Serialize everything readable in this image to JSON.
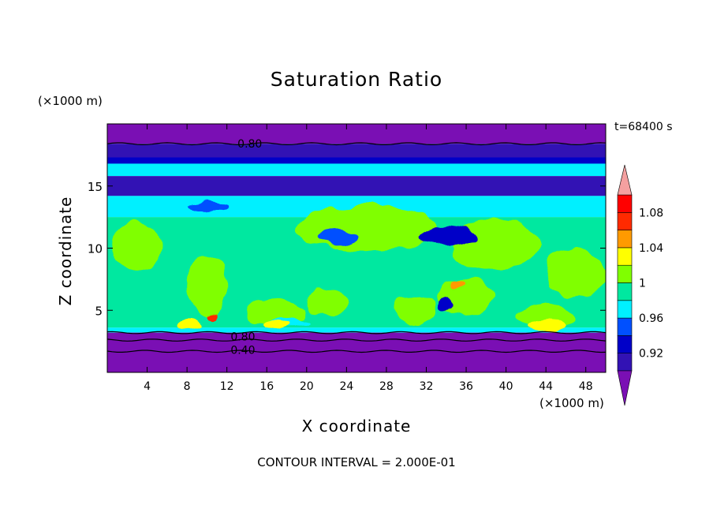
{
  "chart_data": {
    "type": "heatmap",
    "title": "Saturation Ratio",
    "xlabel": "X coordinate",
    "ylabel": "Z coordinate",
    "x_unit": "(×1000 m)",
    "y_unit": "(×1000 m)",
    "time_label": "t=68400 s",
    "footer": "CONTOUR INTERVAL = 2.000E-01",
    "xlim": [
      0,
      50
    ],
    "ylim": [
      0,
      20
    ],
    "x_ticks": [
      4,
      8,
      12,
      16,
      20,
      24,
      28,
      32,
      36,
      40,
      44,
      48
    ],
    "y_ticks": [
      5,
      10,
      15
    ],
    "colorbar": {
      "levels": [
        0.9,
        0.92,
        0.94,
        0.96,
        0.98,
        1.0,
        1.02,
        1.04,
        1.06,
        1.08,
        1.1
      ],
      "tick_labels": [
        {
          "value": 0.92,
          "label": "0.92"
        },
        {
          "value": 0.96,
          "label": "0.96"
        },
        {
          "value": 1.0,
          "label": "1"
        },
        {
          "value": 1.04,
          "label": "1.04"
        },
        {
          "value": 1.08,
          "label": "1.08"
        }
      ],
      "colors": [
        "#7a0fb4",
        "#3212b4",
        "#0000c8",
        "#0050ff",
        "#00f0ff",
        "#00e8a0",
        "#80ff00",
        "#ffff00",
        "#ff9a00",
        "#ff2a00",
        "#ff0000",
        "#f4a0a0"
      ]
    },
    "contour_labels": [
      {
        "text": "0.80",
        "x": 14.3,
        "y": 18.4
      },
      {
        "text": "0.80",
        "x": 13.6,
        "y": 2.9
      },
      {
        "text": "0.40",
        "x": 13.6,
        "y": 1.8
      }
    ],
    "layers": [
      {
        "z": [
          18.4,
          20.0
        ],
        "value": 0.85
      },
      {
        "z": [
          17.2,
          18.4
        ],
        "value": 0.9
      },
      {
        "z": [
          16.6,
          17.3
        ],
        "value": 0.93
      },
      {
        "z": [
          15.8,
          16.8
        ],
        "value": 0.96
      },
      {
        "z": [
          14.2,
          15.8
        ],
        "value": 0.91
      },
      {
        "z": [
          12.5,
          14.2
        ],
        "value": 0.97
      },
      {
        "z": [
          3.6,
          12.5
        ],
        "value": 0.99
      },
      {
        "z": [
          3.2,
          3.6
        ],
        "value": 0.96
      },
      {
        "z": [
          0,
          3.2
        ],
        "value": 0.6
      }
    ],
    "regions": [
      {
        "value": 1.01,
        "center": [
          3.0,
          10.2
        ],
        "radius": [
          2.5,
          2.0
        ]
      },
      {
        "value": 1.01,
        "center": [
          10.0,
          7.0
        ],
        "radius": [
          2.0,
          2.5
        ]
      },
      {
        "value": 1.01,
        "center": [
          26.0,
          11.6
        ],
        "radius": [
          7.0,
          1.9
        ]
      },
      {
        "value": 1.01,
        "center": [
          39.0,
          10.3
        ],
        "radius": [
          4.5,
          2.0
        ]
      },
      {
        "value": 1.01,
        "center": [
          47.0,
          8.0
        ],
        "radius": [
          3.0,
          2.0
        ]
      },
      {
        "value": 1.01,
        "center": [
          17.0,
          4.8
        ],
        "radius": [
          3.0,
          1.1
        ]
      },
      {
        "value": 1.01,
        "center": [
          22.0,
          5.6
        ],
        "radius": [
          2.0,
          1.2
        ]
      },
      {
        "value": 1.01,
        "center": [
          31.0,
          5.0
        ],
        "radius": [
          2.0,
          1.2
        ]
      },
      {
        "value": 1.01,
        "center": [
          36.0,
          6.0
        ],
        "radius": [
          3.0,
          1.4
        ]
      },
      {
        "value": 1.01,
        "center": [
          44.0,
          4.5
        ],
        "radius": [
          3.0,
          1.0
        ]
      },
      {
        "value": 0.93,
        "center": [
          34.0,
          11.0
        ],
        "radius": [
          3.0,
          0.8
        ]
      },
      {
        "value": 0.95,
        "center": [
          23.0,
          10.8
        ],
        "radius": [
          2.0,
          0.6
        ]
      },
      {
        "value": 0.95,
        "center": [
          10.0,
          13.3
        ],
        "radius": [
          2.0,
          0.4
        ]
      },
      {
        "value": 0.96,
        "center": [
          18.0,
          3.9
        ],
        "radius": [
          2.0,
          0.4
        ]
      },
      {
        "value": 1.03,
        "center": [
          16.8,
          3.7
        ],
        "radius": [
          1.4,
          0.4
        ]
      },
      {
        "value": 1.03,
        "center": [
          8.2,
          3.7
        ],
        "radius": [
          1.2,
          0.4
        ]
      },
      {
        "value": 1.03,
        "center": [
          44.0,
          3.7
        ],
        "radius": [
          2.0,
          0.4
        ]
      },
      {
        "value": 1.05,
        "center": [
          35.0,
          7.0
        ],
        "radius": [
          0.6,
          0.3
        ]
      },
      {
        "value": 0.92,
        "center": [
          34.0,
          5.5
        ],
        "radius": [
          0.8,
          0.5
        ]
      },
      {
        "value": 1.07,
        "center": [
          10.4,
          4.5
        ],
        "radius": [
          0.5,
          0.25
        ]
      }
    ]
  }
}
